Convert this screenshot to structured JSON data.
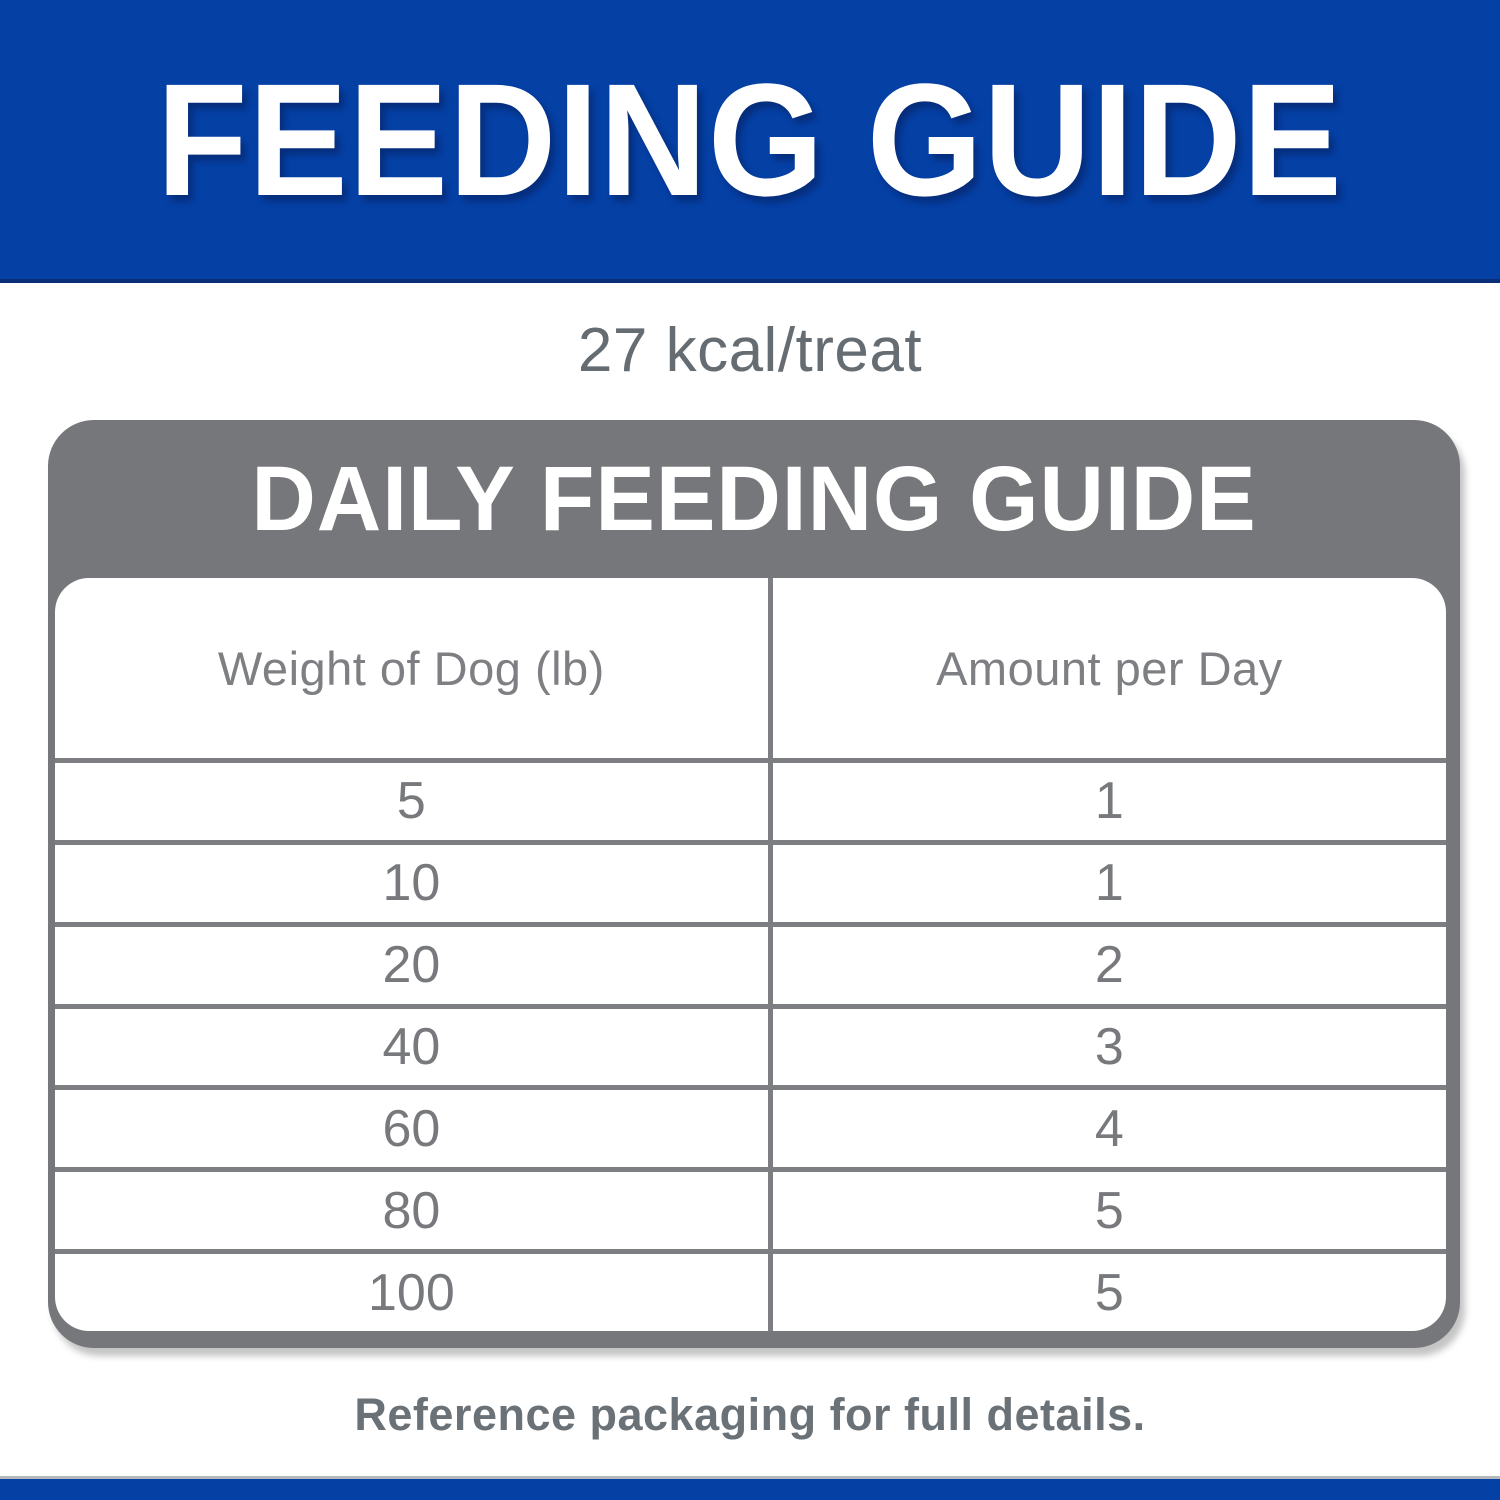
{
  "banner": {
    "title": "FEEDING GUIDE"
  },
  "subtitle": {
    "text": "27 kcal/treat"
  },
  "card": {
    "title": "DAILY FEEDING GUIDE",
    "table": {
      "columns": [
        "Weight of Dog (lb)",
        "Amount per Day"
      ],
      "rows": [
        {
          "weight": "5",
          "amount": "1"
        },
        {
          "weight": "10",
          "amount": "1"
        },
        {
          "weight": "20",
          "amount": "2"
        },
        {
          "weight": "40",
          "amount": "3"
        },
        {
          "weight": "60",
          "amount": "4"
        },
        {
          "weight": "80",
          "amount": "5"
        },
        {
          "weight": "100",
          "amount": "5"
        }
      ]
    }
  },
  "footer": {
    "note": "Reference packaging for full details."
  },
  "colors": {
    "banner_blue": "#0540a5",
    "banner_edge": "#0a2d78",
    "frame_gray": "#76777a",
    "grid_gray": "#7c7e81",
    "muted_text": "#656c72",
    "cell_text": "#77797c",
    "footer_text": "#6b7277",
    "thin_line": "#b5b8bb"
  }
}
